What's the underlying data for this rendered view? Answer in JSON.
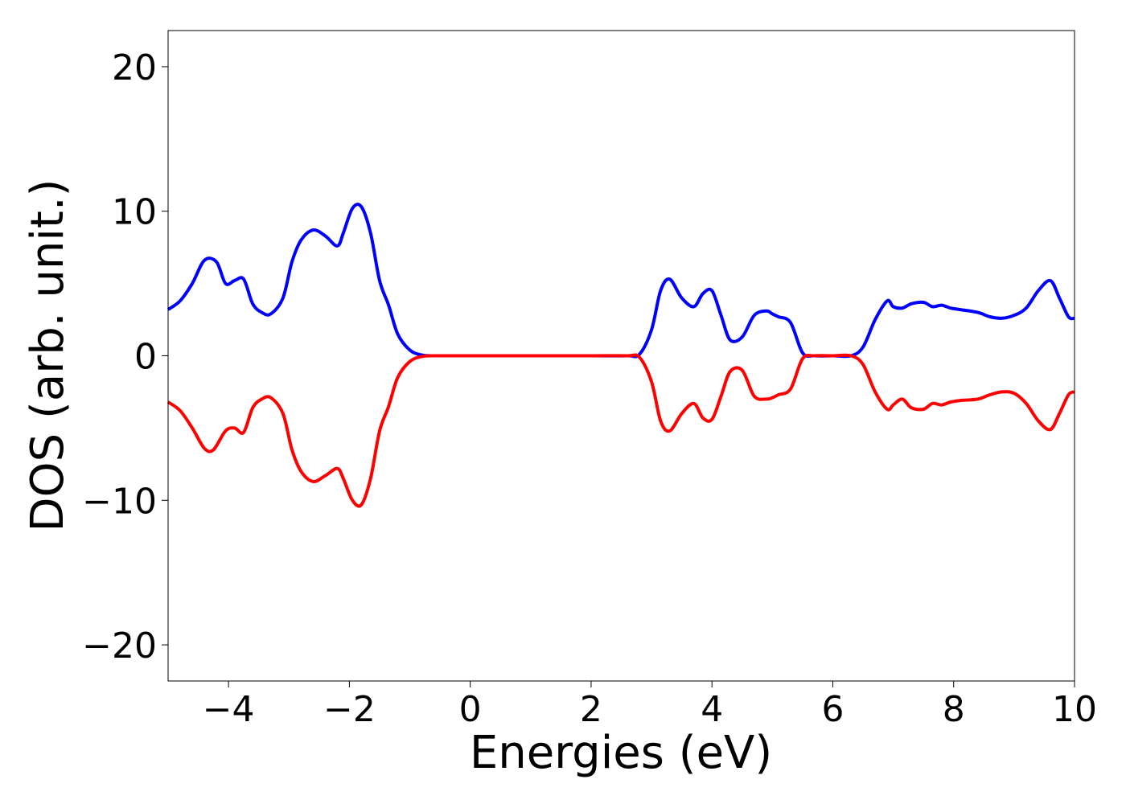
{
  "chart_data": {
    "type": "line",
    "title": "",
    "xlabel": "Energies (eV)",
    "ylabel": "DOS (arb. unit.)",
    "xlim": [
      -5,
      10
    ],
    "ylim": [
      -22.5,
      22.5
    ],
    "xticks": [
      -4,
      -2,
      0,
      2,
      4,
      6,
      8,
      10
    ],
    "yticks": [
      -20,
      -10,
      0,
      10,
      20
    ],
    "xtick_labels": [
      "−4",
      "−2",
      "0",
      "2",
      "4",
      "6",
      "8",
      "10"
    ],
    "ytick_labels": [
      "−20",
      "−10",
      "0",
      "10",
      "20"
    ],
    "grid": false,
    "legend": "none",
    "series": [
      {
        "color": "#0000ff",
        "x": [
          -5.0,
          -4.8,
          -4.6,
          -4.4,
          -4.2,
          -4.05,
          -3.9,
          -3.75,
          -3.6,
          -3.45,
          -3.3,
          -3.1,
          -2.95,
          -2.8,
          -2.6,
          -2.4,
          -2.2,
          -2.1,
          -1.95,
          -1.8,
          -1.65,
          -1.5,
          -1.35,
          -1.2,
          -1.0,
          -0.8,
          -0.6,
          -0.4,
          0.0,
          1.0,
          2.0,
          2.6,
          2.8,
          3.0,
          3.15,
          3.3,
          3.5,
          3.7,
          3.85,
          4.0,
          4.15,
          4.3,
          4.5,
          4.7,
          4.9,
          5.0,
          5.1,
          5.3,
          5.5,
          5.7,
          6.0,
          6.3,
          6.5,
          6.7,
          6.9,
          7.0,
          7.15,
          7.3,
          7.5,
          7.65,
          7.8,
          7.95,
          8.1,
          8.4,
          8.6,
          8.8,
          9.0,
          9.2,
          9.4,
          9.6,
          9.75,
          9.9,
          10.0
        ],
        "y": [
          3.2,
          3.8,
          5.0,
          6.6,
          6.5,
          5.0,
          5.2,
          5.3,
          3.6,
          3.0,
          2.9,
          4.0,
          6.5,
          8.0,
          8.7,
          8.3,
          7.6,
          8.5,
          10.2,
          10.3,
          8.5,
          5.2,
          3.5,
          1.5,
          0.4,
          0.05,
          0.0,
          0.0,
          0.0,
          0.0,
          0.0,
          0.0,
          0.1,
          1.8,
          4.5,
          5.3,
          4.0,
          3.4,
          4.3,
          4.5,
          2.8,
          1.1,
          1.3,
          2.8,
          3.1,
          2.9,
          2.7,
          2.3,
          0.2,
          0.0,
          0.0,
          0.0,
          0.6,
          2.5,
          3.8,
          3.4,
          3.3,
          3.6,
          3.7,
          3.4,
          3.5,
          3.3,
          3.2,
          3.0,
          2.7,
          2.6,
          2.8,
          3.3,
          4.5,
          5.2,
          4.0,
          2.7,
          2.6
        ]
      },
      {
        "color": "#ff0000",
        "x": [
          -5.0,
          -4.8,
          -4.6,
          -4.4,
          -4.25,
          -4.05,
          -3.9,
          -3.75,
          -3.6,
          -3.45,
          -3.3,
          -3.1,
          -2.95,
          -2.8,
          -2.6,
          -2.4,
          -2.2,
          -2.1,
          -1.95,
          -1.8,
          -1.65,
          -1.5,
          -1.35,
          -1.2,
          -1.0,
          -0.8,
          -0.6,
          -0.4,
          0.0,
          1.0,
          2.0,
          2.6,
          2.8,
          3.0,
          3.15,
          3.3,
          3.5,
          3.7,
          3.85,
          4.0,
          4.15,
          4.3,
          4.5,
          4.7,
          4.9,
          5.0,
          5.1,
          5.3,
          5.5,
          5.7,
          6.0,
          6.3,
          6.5,
          6.7,
          6.9,
          7.0,
          7.15,
          7.3,
          7.5,
          7.65,
          7.8,
          7.95,
          8.1,
          8.4,
          8.6,
          8.8,
          9.0,
          9.2,
          9.4,
          9.6,
          9.75,
          9.9,
          10.0
        ],
        "y": [
          -3.2,
          -3.8,
          -5.0,
          -6.4,
          -6.5,
          -5.2,
          -5.0,
          -5.3,
          -3.6,
          -3.0,
          -2.9,
          -4.0,
          -6.5,
          -8.0,
          -8.7,
          -8.3,
          -7.8,
          -8.5,
          -10.0,
          -10.3,
          -8.5,
          -5.2,
          -3.5,
          -1.5,
          -0.4,
          -0.05,
          0.0,
          0.0,
          0.0,
          0.0,
          0.0,
          0.0,
          -0.1,
          -1.8,
          -4.5,
          -5.2,
          -4.0,
          -3.3,
          -4.3,
          -4.4,
          -2.8,
          -1.1,
          -1.0,
          -2.8,
          -3.0,
          -2.9,
          -2.7,
          -2.3,
          -0.2,
          0.0,
          0.0,
          0.0,
          -0.6,
          -2.5,
          -3.7,
          -3.4,
          -3.0,
          -3.6,
          -3.7,
          -3.3,
          -3.4,
          -3.2,
          -3.1,
          -3.0,
          -2.7,
          -2.5,
          -2.6,
          -3.3,
          -4.5,
          -5.1,
          -4.0,
          -2.7,
          -2.5
        ]
      }
    ]
  }
}
